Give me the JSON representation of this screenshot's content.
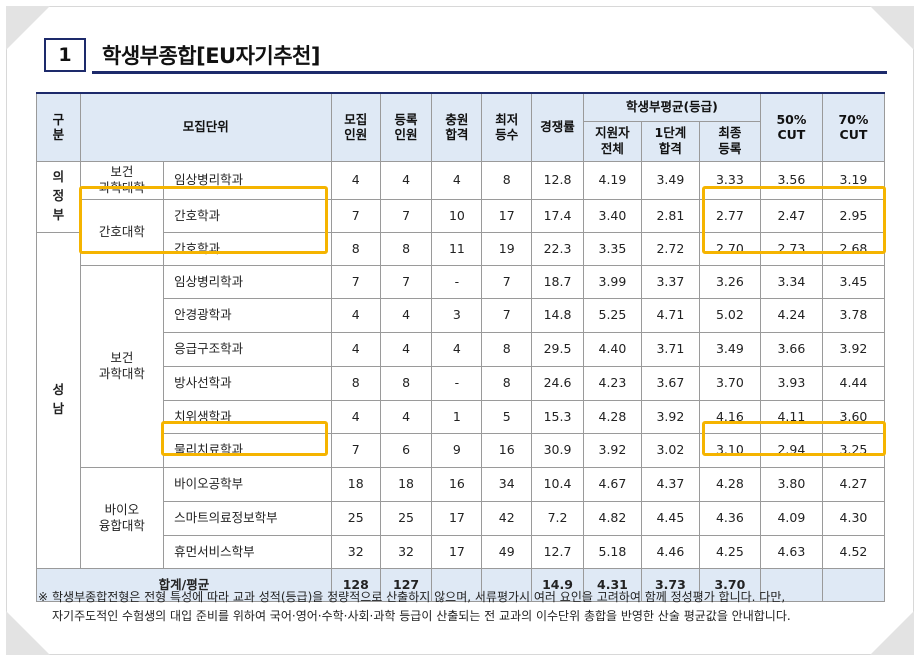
{
  "section": {
    "number": "1",
    "title": "학생부종합[EU자기추천]"
  },
  "headers": {
    "region": "구\n분",
    "unit": "모집단위",
    "recruit": "모집\n인원",
    "registered": "등록\n인원",
    "filled": "충원\n합격",
    "lowest": "최저\n등수",
    "competition": "경쟁률",
    "gpa_group": "학생부평균(등급)",
    "gpa_all": "지원자\n전체",
    "gpa_stage1": "1단계\n합격",
    "gpa_final": "최종\n등록",
    "cut50": "50%\nCUT",
    "cut70": "70%\nCUT"
  },
  "regions": {
    "uijeongbu": "의\n정\n부",
    "seongnam": "성\n남"
  },
  "colleges": {
    "health1": "보건\n과학대학",
    "nursing": "간호대학",
    "health2": "보건\n과학대학",
    "bio": "바이오\n융합대학"
  },
  "rows": [
    {
      "dept": "임상병리학과",
      "recruit": "4",
      "registered": "4",
      "filled": "4",
      "lowest": "8",
      "competition": "12.8",
      "gpa_all": "4.19",
      "gpa_stage1": "3.49",
      "gpa_final": "3.33",
      "cut50": "3.56",
      "cut70": "3.19"
    },
    {
      "dept": "간호학과",
      "recruit": "7",
      "registered": "7",
      "filled": "10",
      "lowest": "17",
      "competition": "17.4",
      "gpa_all": "3.40",
      "gpa_stage1": "2.81",
      "gpa_final": "2.77",
      "cut50": "2.47",
      "cut70": "2.95"
    },
    {
      "dept": "간호학과",
      "recruit": "8",
      "registered": "8",
      "filled": "11",
      "lowest": "19",
      "competition": "22.3",
      "gpa_all": "3.35",
      "gpa_stage1": "2.72",
      "gpa_final": "2.70",
      "cut50": "2.73",
      "cut70": "2.68"
    },
    {
      "dept": "임상병리학과",
      "recruit": "7",
      "registered": "7",
      "filled": "-",
      "lowest": "7",
      "competition": "18.7",
      "gpa_all": "3.99",
      "gpa_stage1": "3.37",
      "gpa_final": "3.26",
      "cut50": "3.34",
      "cut70": "3.45"
    },
    {
      "dept": "안경광학과",
      "recruit": "4",
      "registered": "4",
      "filled": "3",
      "lowest": "7",
      "competition": "14.8",
      "gpa_all": "5.25",
      "gpa_stage1": "4.71",
      "gpa_final": "5.02",
      "cut50": "4.24",
      "cut70": "3.78"
    },
    {
      "dept": "응급구조학과",
      "recruit": "4",
      "registered": "4",
      "filled": "4",
      "lowest": "8",
      "competition": "29.5",
      "gpa_all": "4.40",
      "gpa_stage1": "3.71",
      "gpa_final": "3.49",
      "cut50": "3.66",
      "cut70": "3.92"
    },
    {
      "dept": "방사선학과",
      "recruit": "8",
      "registered": "8",
      "filled": "-",
      "lowest": "8",
      "competition": "24.6",
      "gpa_all": "4.23",
      "gpa_stage1": "3.67",
      "gpa_final": "3.70",
      "cut50": "3.93",
      "cut70": "4.44"
    },
    {
      "dept": "치위생학과",
      "recruit": "4",
      "registered": "4",
      "filled": "1",
      "lowest": "5",
      "competition": "15.3",
      "gpa_all": "4.28",
      "gpa_stage1": "3.92",
      "gpa_final": "4.16",
      "cut50": "4.11",
      "cut70": "3.60"
    },
    {
      "dept": "물리치료학과",
      "recruit": "7",
      "registered": "6",
      "filled": "9",
      "lowest": "16",
      "competition": "30.9",
      "gpa_all": "3.92",
      "gpa_stage1": "3.02",
      "gpa_final": "3.10",
      "cut50": "2.94",
      "cut70": "3.25"
    },
    {
      "dept": "바이오공학부",
      "recruit": "18",
      "registered": "18",
      "filled": "16",
      "lowest": "34",
      "competition": "10.4",
      "gpa_all": "4.67",
      "gpa_stage1": "4.37",
      "gpa_final": "4.28",
      "cut50": "3.80",
      "cut70": "4.27"
    },
    {
      "dept": "스마트의료정보학부",
      "recruit": "25",
      "registered": "25",
      "filled": "17",
      "lowest": "42",
      "competition": "7.2",
      "gpa_all": "4.82",
      "gpa_stage1": "4.45",
      "gpa_final": "4.36",
      "cut50": "4.09",
      "cut70": "4.30"
    },
    {
      "dept": "휴먼서비스학부",
      "recruit": "32",
      "registered": "32",
      "filled": "17",
      "lowest": "49",
      "competition": "12.7",
      "gpa_all": "5.18",
      "gpa_stage1": "4.46",
      "gpa_final": "4.25",
      "cut50": "4.63",
      "cut70": "4.52"
    }
  ],
  "totals": {
    "label": "합계/평균",
    "recruit": "128",
    "registered": "127",
    "competition": "14.9",
    "gpa_all": "4.31",
    "gpa_stage1": "3.73",
    "gpa_final": "3.70"
  },
  "footnote": {
    "mark": "※",
    "line1": "학생부종합전형은 전형 특성에 따라 교과 성적(등급)을 정량적으로 산출하지 않으며, 서류평가시 여러 요인을 고려하여 함께 정성평가 합니다. 다만,",
    "line2": "자기주도적인 수험생의 대입 준비를 위하여 국어·영어·수학·사회·과학 등급이 산출되는 전 교과의 이수단위 총합을 반영한 산술 평균값을 안내합니다."
  },
  "colors": {
    "navy": "#1d2a6b",
    "header_bg": "#dfe9f5",
    "highlight": "#f5b400",
    "corner": "#e3e3e3"
  }
}
